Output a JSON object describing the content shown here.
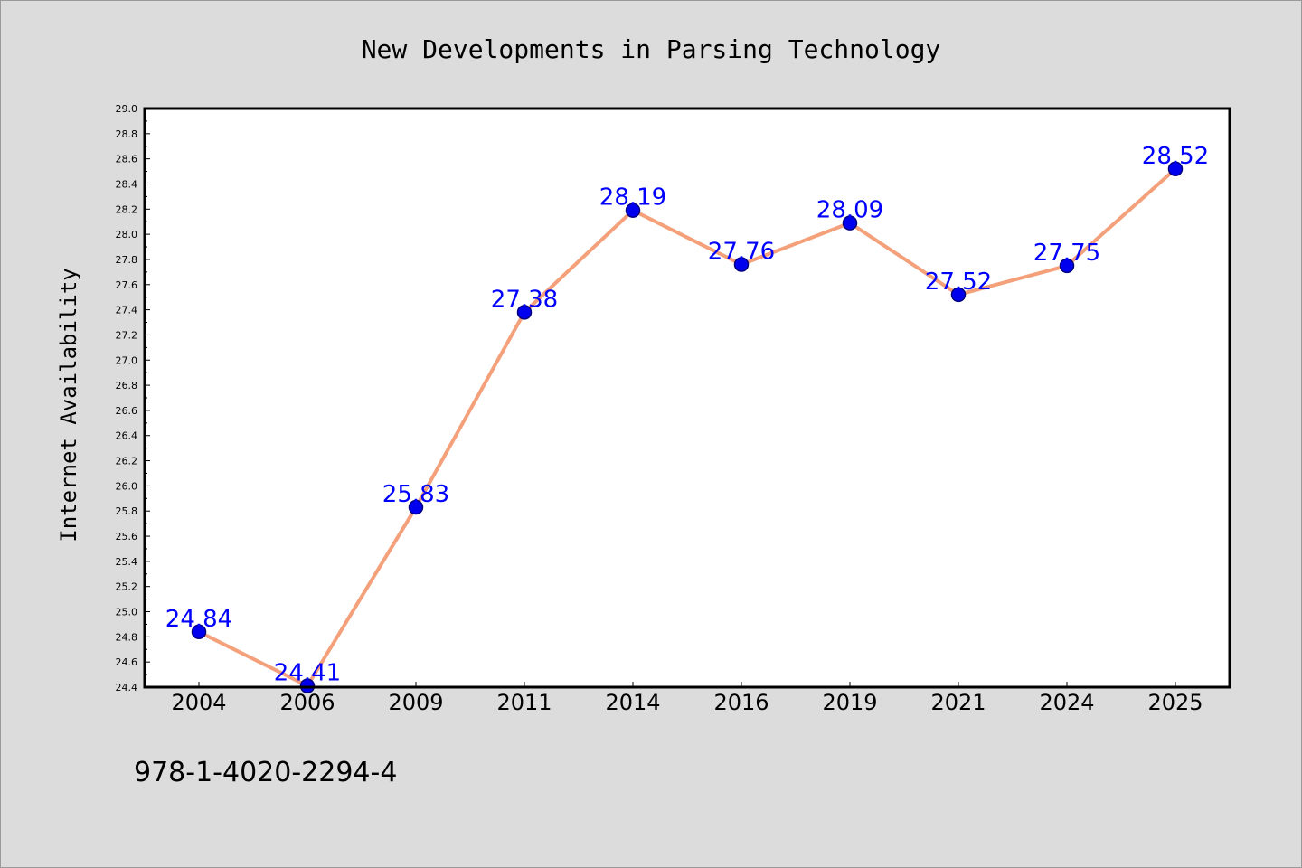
{
  "chart_data": {
    "type": "line",
    "title": "New Developments in Parsing Technology",
    "xlabel": "",
    "ylabel": "Internet Availability",
    "categories": [
      "2004",
      "2006",
      "2009",
      "2011",
      "2014",
      "2016",
      "2019",
      "2021",
      "2024",
      "2025"
    ],
    "series": [
      {
        "values": [
          24.84,
          24.41,
          25.83,
          27.38,
          28.19,
          27.76,
          28.09,
          27.52,
          27.75,
          28.52
        ],
        "data_labels": [
          "24.84",
          "24.41",
          "25.83",
          "27.38",
          "28.19",
          "27.76",
          "28.09",
          "27.52",
          "27.75",
          "28.52"
        ]
      }
    ],
    "ylim": [
      24.4,
      29.0
    ],
    "yticks": [
      "24.4",
      "24.6",
      "24.8",
      "25.0",
      "25.2",
      "25.4",
      "25.6",
      "25.8",
      "26.0",
      "26.2",
      "26.4",
      "26.6",
      "26.8",
      "27.0",
      "27.2",
      "27.4",
      "27.6",
      "27.8",
      "28.0",
      "28.2",
      "28.4",
      "28.6",
      "28.8",
      "29.0"
    ],
    "grid": false,
    "legend": "none",
    "colors": {
      "background": "#dcdcdc",
      "plot_background": "#ffffff",
      "line": "#f4a07a",
      "marker_fill": "#0000ee",
      "marker_stroke": "#000080",
      "data_label": "#0000ff"
    }
  },
  "footnote": "978-1-4020-2294-4"
}
